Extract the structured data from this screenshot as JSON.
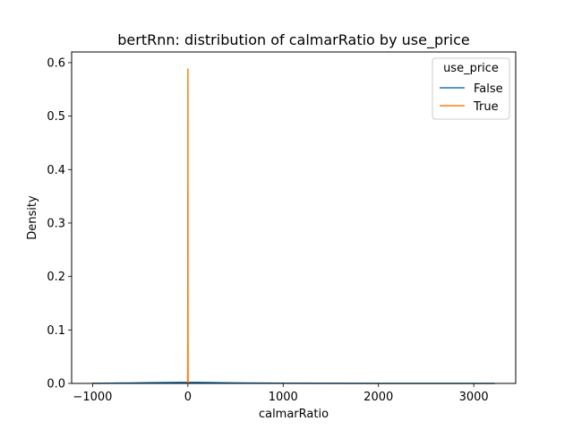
{
  "chart_data": {
    "type": "line",
    "title": "bertRnn: distribution of calmarRatio by use_price",
    "xlabel": "calmarRatio",
    "ylabel": "Density",
    "xlim": [
      -1220,
      3440
    ],
    "ylim": [
      0,
      0.62
    ],
    "xticks": [
      -1000,
      0,
      1000,
      2000,
      3000
    ],
    "xtick_labels": [
      "−1000",
      "0",
      "1000",
      "2000",
      "3000"
    ],
    "yticks": [
      0.0,
      0.1,
      0.2,
      0.3,
      0.4,
      0.5,
      0.6
    ],
    "ytick_labels": [
      "0.0",
      "0.1",
      "0.2",
      "0.3",
      "0.4",
      "0.5",
      "0.6"
    ],
    "grid": false,
    "legend": {
      "title": "use_price",
      "placement": "top-right"
    },
    "series": [
      {
        "name": "False",
        "color": "#1f77b4",
        "x": [
          -1000,
          -800,
          -600,
          -400,
          -200,
          -100,
          0,
          100,
          200,
          400,
          600,
          800,
          1000,
          1500,
          2000,
          2500,
          3000,
          3220
        ],
        "y": [
          0.0003,
          0.0005,
          0.0009,
          0.0014,
          0.0019,
          0.0021,
          0.0022,
          0.0021,
          0.0018,
          0.0013,
          0.0009,
          0.0006,
          0.0004,
          0.0002,
          0.0001,
          0.0001,
          0.0001,
          0.0001
        ]
      },
      {
        "name": "True",
        "color": "#ff7f0e",
        "x": [
          -3,
          -2,
          -1,
          -0.5,
          0,
          0.5,
          1,
          2,
          3
        ],
        "y": [
          0,
          0.02,
          0.25,
          0.5,
          0.588,
          0.5,
          0.25,
          0.02,
          0
        ]
      }
    ]
  }
}
